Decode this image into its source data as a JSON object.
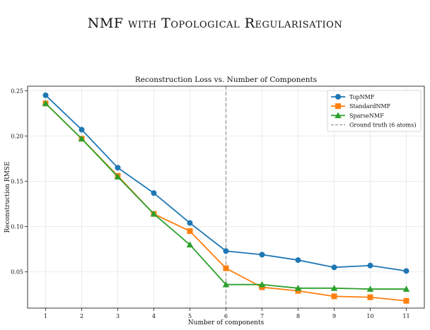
{
  "page": {
    "title": "NMF with Topological Regularisation"
  },
  "chart_data": {
    "type": "line",
    "title": "Reconstruction Loss vs. Number of Components",
    "xlabel": "Number of components",
    "ylabel": "Reconstruction RMSE",
    "x": [
      1,
      2,
      3,
      4,
      5,
      6,
      7,
      8,
      9,
      10,
      11
    ],
    "xlim": [
      0.5,
      11.5
    ],
    "ylim": [
      0.01,
      0.255
    ],
    "yticks": [
      0.05,
      0.1,
      0.15,
      0.2,
      0.25
    ],
    "ytick_labels": [
      "0.05",
      "0.10",
      "0.15",
      "0.20",
      "0.25"
    ],
    "xtick_labels": [
      "1",
      "2",
      "3",
      "4",
      "5",
      "6",
      "7",
      "8",
      "9",
      "10",
      "11"
    ],
    "grid": true,
    "legend_position": "top-right",
    "series": [
      {
        "name": "TopNMF",
        "color": "#1f77b4",
        "marker": "circle",
        "values": [
          0.245,
          0.207,
          0.165,
          0.137,
          0.104,
          0.073,
          0.069,
          0.063,
          0.055,
          0.057,
          0.051
        ]
      },
      {
        "name": "StandardNMF",
        "color": "#ff7f0e",
        "marker": "square",
        "values": [
          0.236,
          0.197,
          0.156,
          0.114,
          0.095,
          0.054,
          0.033,
          0.029,
          0.023,
          0.022,
          0.018
        ]
      },
      {
        "name": "SparseNMF",
        "color": "#2ca02c",
        "marker": "triangle",
        "values": [
          0.236,
          0.197,
          0.155,
          0.114,
          0.08,
          0.036,
          0.036,
          0.032,
          0.032,
          0.031,
          0.031
        ]
      }
    ],
    "reference_line": {
      "name": "Ground truth (6 atoms)",
      "x": 6,
      "color": "#999999",
      "style": "dashed"
    }
  }
}
